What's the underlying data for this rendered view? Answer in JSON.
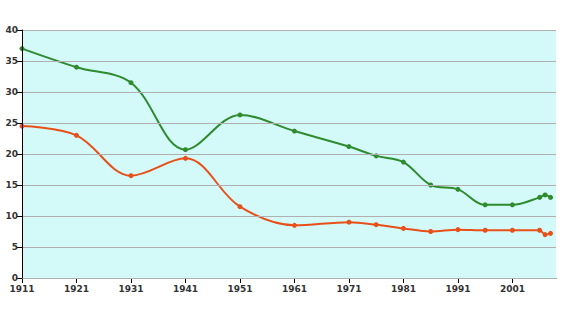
{
  "chart_data": {
    "type": "line",
    "x": [
      1911,
      1921,
      1931,
      1941,
      1951,
      1961,
      1971,
      1976,
      1981,
      1986,
      1991,
      1996,
      2001,
      2006,
      2007,
      2008
    ],
    "series": [
      {
        "color": "#2e8b2e",
        "marker": "circle",
        "values": [
          37,
          34,
          31.5,
          20.7,
          26.3,
          23.7,
          21.2,
          19.7,
          18.7,
          15,
          14.3,
          11.8,
          11.8,
          13,
          13.4,
          13
        ]
      },
      {
        "color": "#e8501a",
        "marker": "circle",
        "values": [
          24.5,
          23,
          16.5,
          19.3,
          11.5,
          8.5,
          9,
          8.6,
          8,
          7.5,
          7.8,
          7.7,
          7.7,
          7.7,
          7,
          7.2
        ]
      }
    ],
    "xlim": [
      1911,
      2009
    ],
    "xticks": [
      1911,
      1921,
      1931,
      1941,
      1951,
      1961,
      1971,
      1981,
      1991,
      2001
    ],
    "ylim": [
      0,
      40
    ],
    "yticks": [
      0,
      5,
      10,
      15,
      20,
      25,
      30,
      35,
      40
    ],
    "grid": true
  }
}
